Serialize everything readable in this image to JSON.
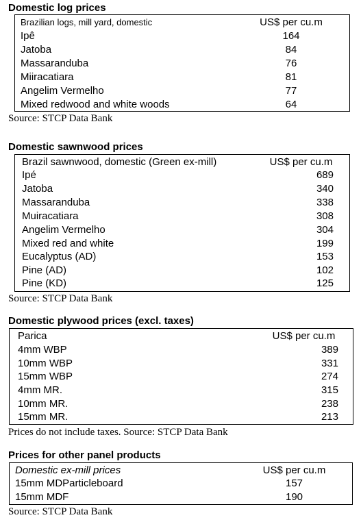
{
  "log": {
    "title": "Domestic log prices",
    "header_label": "Brazilian logs, mill yard, domestic",
    "header_unit": "US$ per cu.m",
    "rows": [
      {
        "name": "Ipê",
        "value": "164"
      },
      {
        "name": "Jatoba",
        "value": "84"
      },
      {
        "name": "Massaranduba",
        "value": "76"
      },
      {
        "name": "Miiracatiara",
        "value": "81"
      },
      {
        "name": "Angelim Vermelho",
        "value": "77"
      },
      {
        "name": "Mixed redwood and white woods",
        "value": "64"
      }
    ],
    "source": "Source: STCP Data Bank"
  },
  "sawn": {
    "title": "Domestic sawnwood prices",
    "header_label": "Brazil sawnwood, domestic (Green ex-mill)",
    "header_unit": "US$ per cu.m",
    "rows": [
      {
        "name": "Ipé",
        "value": "689"
      },
      {
        "name": "Jatoba",
        "value": "340"
      },
      {
        "name": "Massaranduba",
        "value": "338"
      },
      {
        "name": "Muiracatiara",
        "value": "308"
      },
      {
        "name": "Angelim Vermelho",
        "value": "304"
      },
      {
        "name": "Mixed red and white",
        "value": "199"
      },
      {
        "name": "Eucalyptus (AD)",
        "value": "153"
      },
      {
        "name": "Pine (AD)",
        "value": "102"
      },
      {
        "name": "Pine (KD)",
        "value": "125"
      }
    ],
    "source": "Source: STCP Data Bank"
  },
  "ply": {
    "title": "Domestic plywood prices (excl. taxes)",
    "header_label": "Parica",
    "header_unit": "US$ per cu.m",
    "rows": [
      {
        "name": "4mm WBP",
        "value": "389"
      },
      {
        "name": "10mm WBP",
        "value": "331"
      },
      {
        "name": "15mm WBP",
        "value": "274"
      },
      {
        "name": "4mm MR.",
        "value": "315"
      },
      {
        "name": "10mm MR.",
        "value": "238"
      },
      {
        "name": "15mm MR.",
        "value": "213"
      }
    ],
    "source": "Prices do not include taxes. Source: STCP Data Bank"
  },
  "panel": {
    "title": "Prices for other panel products",
    "header_label": "Domestic ex-mill prices",
    "header_unit": "US$ per cu.m",
    "rows": [
      {
        "name": "15mm MDParticleboard",
        "value": "157"
      },
      {
        "name": "15mm MDF",
        "value": "190"
      }
    ],
    "source": "Source: STCP Data Bank"
  }
}
